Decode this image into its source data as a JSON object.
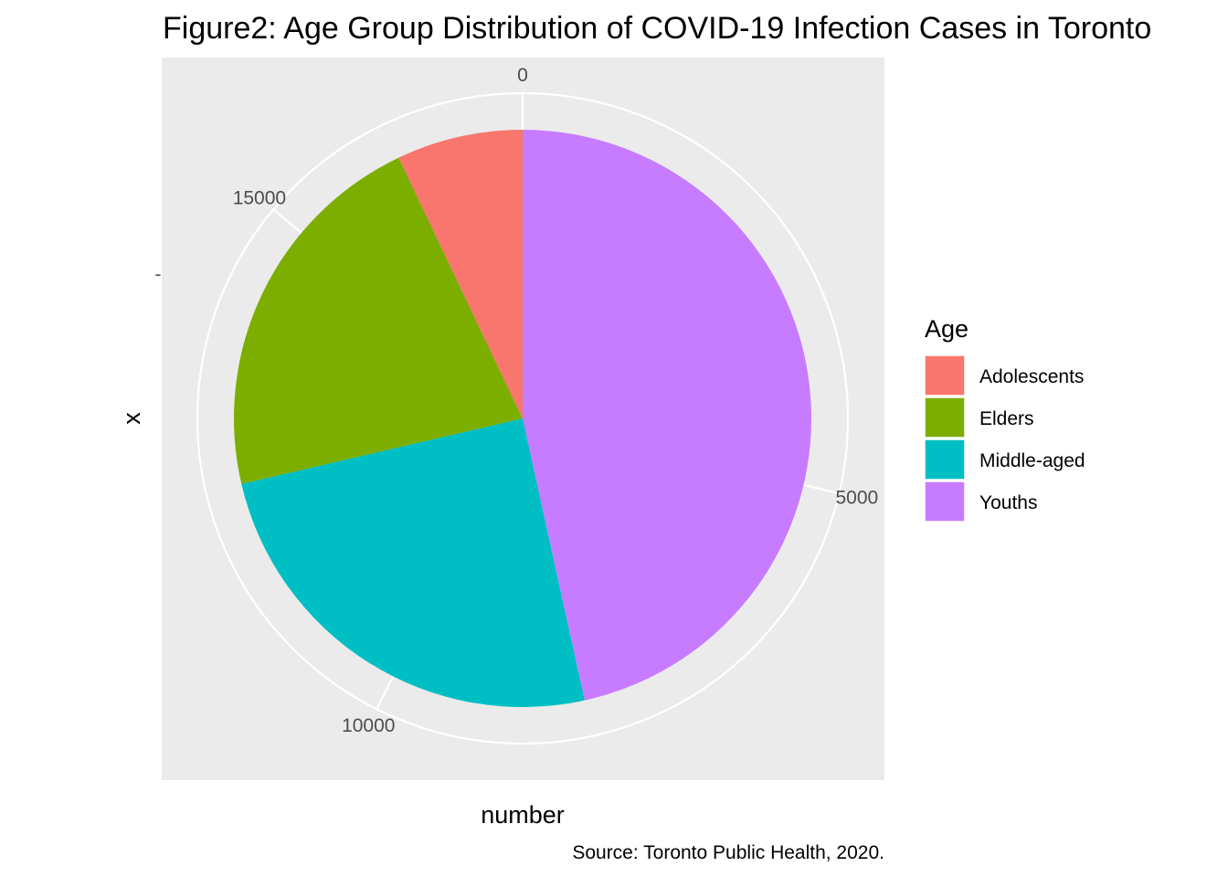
{
  "chart_data": {
    "type": "pie",
    "title": "Figure2: Age Group Distribution of COVID-19 Infection Cases in Toronto",
    "xlabel": "number",
    "ylabel": "x",
    "y_tick_label": "-",
    "caption": "Source: Toronto Public Health, 2020.",
    "theta_ticks": [
      0,
      5000,
      10000,
      15000
    ],
    "theta_range": [
      0,
      17420
    ],
    "legend_title": "Age",
    "legend_position": "right",
    "background": "#EBEBEB",
    "grid": true,
    "slices": [
      {
        "label": "Adolescents",
        "value": 1230,
        "color": "#F8766D"
      },
      {
        "label": "Elders",
        "value": 3760,
        "color": "#7CAE00"
      },
      {
        "label": "Middle-aged",
        "value": 4320,
        "color": "#00BFC4"
      },
      {
        "label": "Youths",
        "value": 8110,
        "color": "#C77CFF"
      }
    ]
  }
}
